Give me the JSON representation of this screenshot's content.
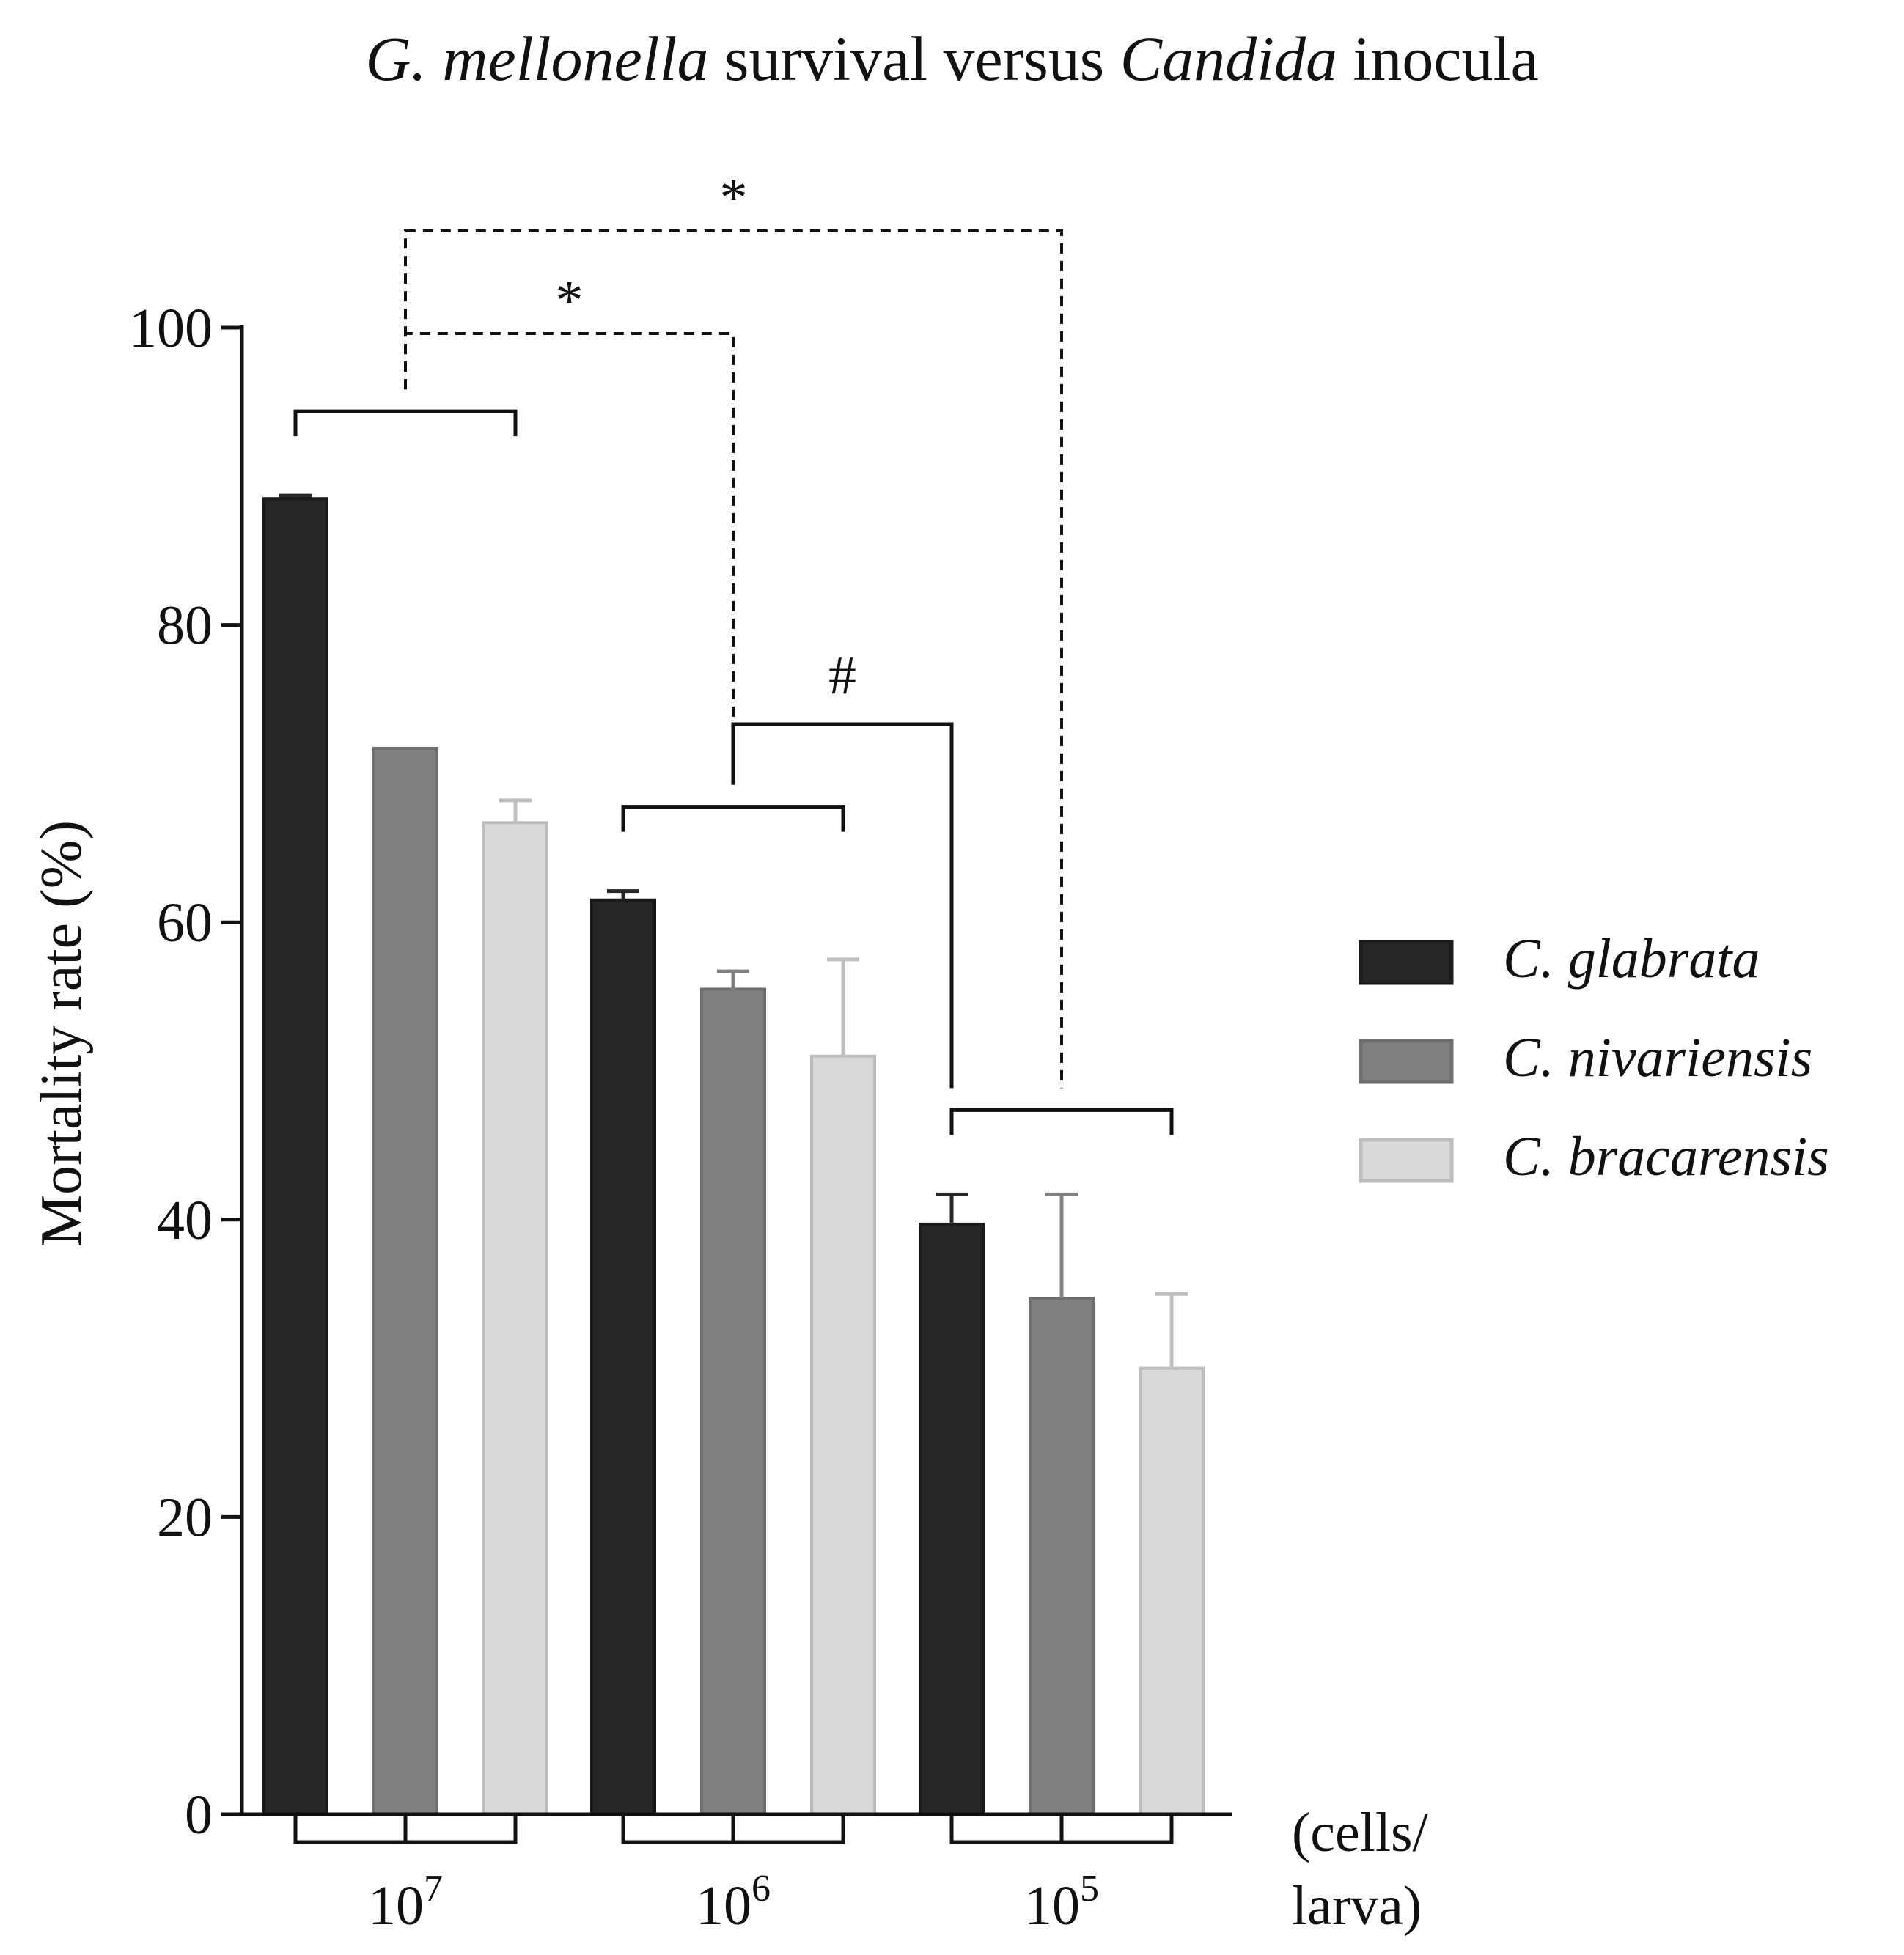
{
  "colors": {
    "axis": "#111111",
    "series": [
      "#262626",
      "#808080",
      "#d9d9d9"
    ],
    "error": [
      "#262626",
      "#808080",
      "#bfbfbf"
    ],
    "border": [
      "#1a1a1a",
      "#6e6e6e",
      "#bdbdbd"
    ]
  },
  "chart_data": {
    "type": "bar",
    "title": {
      "part1": "G. mellonella",
      "part2": " survival versus ",
      "part3": "Candida",
      "part4": " inocula"
    },
    "ylabel": "Mortality rate (%)",
    "xlabel_unit": [
      "(cells/",
      "larva)"
    ],
    "ylim": [
      0,
      100
    ],
    "yticks": [
      0,
      20,
      40,
      60,
      80,
      100
    ],
    "categories": [
      {
        "base": "10",
        "exp": "7"
      },
      {
        "base": "10",
        "exp": "6"
      },
      {
        "base": "10",
        "exp": "5"
      }
    ],
    "series": [
      {
        "name": "C. glabrata",
        "values": [
          88.5,
          61.5,
          39.7
        ],
        "errors": [
          0.2,
          0.6,
          2.0
        ]
      },
      {
        "name": "C. nivariensis",
        "values": [
          71.7,
          55.5,
          34.7
        ],
        "errors": [
          0.0,
          1.2,
          7.0
        ]
      },
      {
        "name": "C. bracarensis",
        "values": [
          66.7,
          51.0,
          30.0
        ],
        "errors": [
          1.5,
          6.5,
          5.0
        ]
      }
    ],
    "legend_position": "right",
    "annotations": [
      {
        "type": "dashed-bracket",
        "from_group": 0,
        "to_group": 1,
        "label": "*"
      },
      {
        "type": "dashed-bracket",
        "from_group": 0,
        "to_group": 2,
        "label": "*"
      },
      {
        "type": "solid-bracket",
        "from_group": 1,
        "to_group": 2,
        "label": "#"
      }
    ]
  }
}
